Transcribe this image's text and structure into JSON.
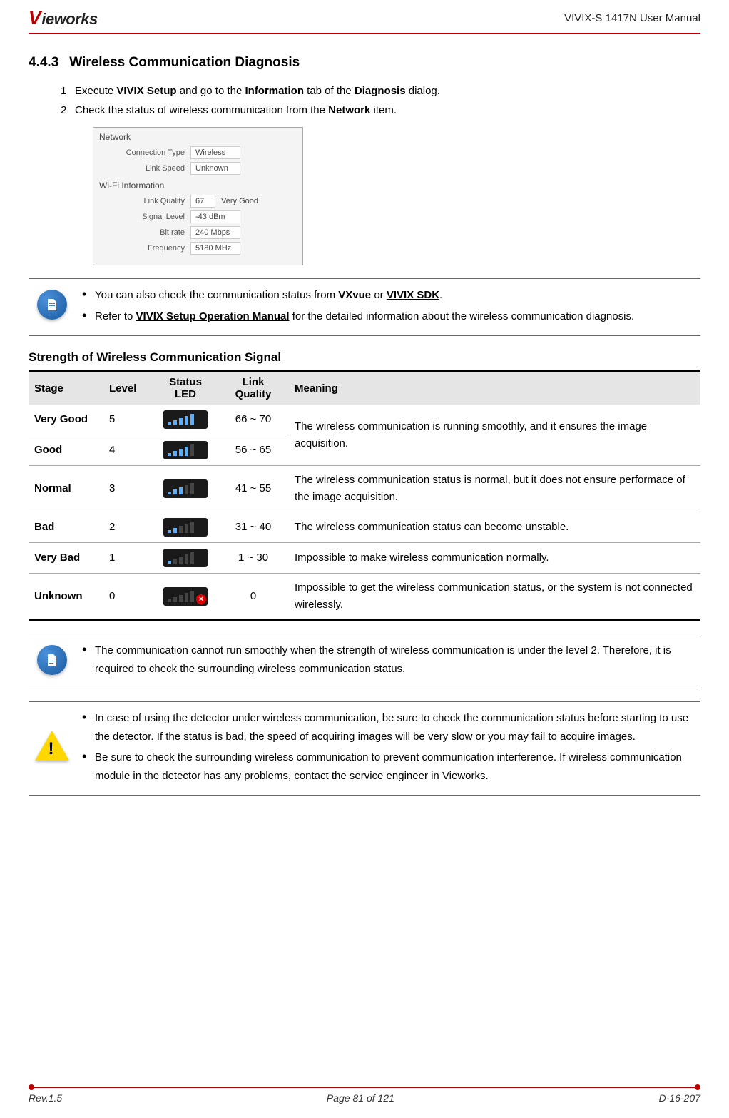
{
  "header": {
    "logo_v": "V",
    "logo_rest": "ieworks",
    "doc_title": "VIVIX-S 1417N User Manual"
  },
  "section": {
    "number": "4.4.3",
    "title": "Wireless Communication Diagnosis"
  },
  "instructions": {
    "step1_num": "1",
    "step1_a": "Execute ",
    "step1_b": "VIVIX Setup",
    "step1_c": " and go to the ",
    "step1_d": "Information",
    "step1_e": " tab of the ",
    "step1_f": "Diagnosis",
    "step1_g": " dialog.",
    "step2_num": "2",
    "step2_a": "Check the status of wireless communication from the ",
    "step2_b": "Network",
    "step2_c": " item."
  },
  "screenshot": {
    "section1": "Network",
    "conn_type_label": "Connection Type",
    "conn_type_value": "Wireless",
    "link_speed_label": "Link Speed",
    "link_speed_value": "Unknown",
    "section2": "Wi-Fi Information",
    "link_quality_label": "Link Quality",
    "link_quality_value": "67",
    "link_quality_extra": "Very Good",
    "signal_level_label": "Signal Level",
    "signal_level_value": "-43 dBm",
    "bit_rate_label": "Bit rate",
    "bit_rate_value": "240 Mbps",
    "frequency_label": "Frequency",
    "frequency_value": "5180 MHz"
  },
  "note1": {
    "bullet1_a": "You can also check the communication status from ",
    "bullet1_b": "VXvue",
    "bullet1_c": " or ",
    "bullet1_d": "VIVIX SDK",
    "bullet1_e": ".",
    "bullet2_a": "Refer to ",
    "bullet2_b": "VIVIX Setup Operation Manual",
    "bullet2_c": " for the detailed information about the wireless communication diagnosis."
  },
  "subheading": "Strength of Wireless Communication Signal",
  "table": {
    "headers": {
      "stage": "Stage",
      "level": "Level",
      "status_led": "Status LED",
      "link_quality": "Link Quality",
      "meaning": "Meaning"
    },
    "rows": [
      {
        "stage": "Very Good",
        "level": "5",
        "bars_on": 5,
        "quality": "66 ~ 70",
        "meaning": "",
        "has_x": false
      },
      {
        "stage": "Good",
        "level": "4",
        "bars_on": 4,
        "quality": "56 ~ 65",
        "meaning": "",
        "has_x": false
      },
      {
        "stage": "Normal",
        "level": "3",
        "bars_on": 3,
        "quality": "41 ~ 55",
        "meaning": "The wireless communication status is normal, but it does not ensure performace of the image acquisition.",
        "has_x": false
      },
      {
        "stage": "Bad",
        "level": "2",
        "bars_on": 2,
        "quality": "31 ~ 40",
        "meaning": "The wireless communication status can become unstable.",
        "has_x": false
      },
      {
        "stage": "Very Bad",
        "level": "1",
        "bars_on": 1,
        "quality": "1 ~ 30",
        "meaning": "Impossible to make wireless communication normally.",
        "has_x": false
      },
      {
        "stage": "Unknown",
        "level": "0",
        "bars_on": 0,
        "quality": "0",
        "meaning": "Impossible to get the wireless communication status, or the system is not connected wirelessly.",
        "has_x": true
      }
    ],
    "merged_meaning": "The wireless communication is running smoothly, and it ensures the image acquisition."
  },
  "note2": {
    "bullet1": "The communication cannot run smoothly when the strength of wireless communication is under the level 2. Therefore, it is required to check the surrounding wireless communication status."
  },
  "note3": {
    "bullet1": "In case of using the detector under wireless communication, be sure to check the communication status before starting to use the detector. If the status is bad, the speed of acquiring images will be very slow or you may fail to acquire images.",
    "bullet2": "Be sure to check the surrounding wireless communication to prevent communication interference. If wireless communication module in the detector has any problems, contact the service engineer in Vieworks."
  },
  "footer": {
    "rev": "Rev.1.5",
    "page": "Page 81 of 121",
    "doc_num": "D-16-207"
  }
}
